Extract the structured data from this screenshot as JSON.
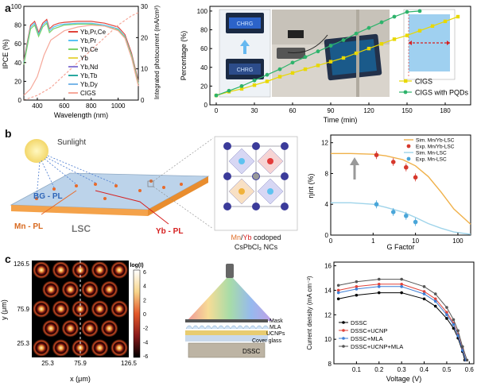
{
  "panel_labels": {
    "a": "a",
    "b": "b",
    "c": "c"
  },
  "colors": {
    "YbPrCe": "#e0433a",
    "YbPr": "#58c2f5",
    "YbCe": "#7bd36b",
    "Yb": "#e8d64a",
    "YbNd": "#8a7ad6",
    "YbTb": "#2aa8a0",
    "YbDy": "#79b7e8",
    "CIGS": "#f6a89a",
    "cigs_line": "#e8d800",
    "pqd_line": "#2db36b",
    "sim_mnyb": "#f0b14a",
    "exp_mnyb": "#d6382c",
    "sim_mn": "#9fd4ea",
    "exp_mn": "#4aa6d9",
    "dssc": "#000000",
    "dssc_ucnp": "#e0433a",
    "dssc_mla": "#3f7fd6",
    "dssc_ucnp_mla": "#555555"
  },
  "chart_data": [
    {
      "id": "ipce",
      "type": "line",
      "xlabel": "Wavelength (nm)",
      "ylabel": "IPCE (%)",
      "y2label": "Integrated photocurrent (mA/cm²)",
      "xlim": [
        300,
        1150
      ],
      "ylim": [
        0,
        100
      ],
      "y2lim": [
        0,
        30
      ],
      "xticks": [
        "400",
        "600",
        "800",
        "1000"
      ],
      "yticks": [
        "0",
        "20",
        "40",
        "60",
        "80",
        "100"
      ],
      "y2ticks": [
        "0",
        "10",
        "20",
        "30"
      ],
      "legend": [
        "Yb,Pr,Ce",
        "Yb,Pr",
        "Yb,Ce",
        "Yb",
        "Yb,Nd",
        "Yb,Tb",
        "Yb,Dy",
        "CIGS"
      ],
      "series": [
        {
          "name": "Yb,Pr,Ce",
          "x": [
            300,
            350,
            380,
            410,
            440,
            470,
            490,
            520,
            560,
            600,
            700,
            800,
            900,
            1000,
            1050,
            1100,
            1150
          ],
          "y": [
            42,
            80,
            84,
            72,
            82,
            86,
            76,
            80,
            82,
            83,
            84,
            84,
            82,
            78,
            70,
            50,
            20
          ]
        },
        {
          "name": "Yb,Pr",
          "x": [
            300,
            350,
            380,
            410,
            440,
            470,
            490,
            520,
            560,
            600,
            700,
            800,
            900,
            1000,
            1050,
            1100,
            1150
          ],
          "y": [
            40,
            78,
            82,
            70,
            80,
            84,
            74,
            78,
            80,
            81,
            82,
            82,
            80,
            76,
            68,
            48,
            18
          ]
        },
        {
          "name": "Yb,Ce",
          "x": [
            300,
            350,
            380,
            410,
            440,
            470,
            490,
            520,
            560,
            600,
            700,
            800,
            900,
            1000,
            1050,
            1100,
            1150
          ],
          "y": [
            38,
            76,
            80,
            68,
            78,
            82,
            72,
            76,
            78,
            80,
            81,
            81,
            79,
            75,
            67,
            47,
            17
          ]
        },
        {
          "name": "CIGS",
          "x": [
            300,
            350,
            400,
            450,
            500,
            600,
            700,
            800,
            900,
            1000,
            1050,
            1100,
            1150
          ],
          "y": [
            5,
            12,
            25,
            48,
            64,
            74,
            78,
            80,
            79,
            74,
            66,
            45,
            15
          ]
        }
      ],
      "photocurrent": {
        "x": [
          300,
          400,
          500,
          600,
          700,
          800,
          900,
          1000,
          1100,
          1150
        ],
        "y": [
          0,
          1.5,
          4,
          8,
          12,
          16,
          20,
          24,
          27,
          28
        ]
      }
    },
    {
      "id": "percentage",
      "type": "line",
      "xlabel": "Time (min)",
      "ylabel": "Percentage (%)",
      "xlim": [
        -5,
        200
      ],
      "ylim": [
        0,
        105
      ],
      "xticks": [
        "0",
        "30",
        "60",
        "90",
        "120",
        "150",
        "180"
      ],
      "yticks": [
        "0",
        "20",
        "40",
        "60",
        "80",
        "100"
      ],
      "series": [
        {
          "name": "CIGS",
          "x": [
            0,
            10,
            20,
            30,
            40,
            50,
            60,
            70,
            80,
            90,
            100,
            110,
            120,
            130,
            140,
            150,
            160,
            170,
            180,
            190
          ],
          "y": [
            10,
            14,
            17,
            21,
            25,
            30,
            34,
            38,
            42,
            46,
            50,
            55,
            60,
            65,
            70,
            74,
            79,
            84,
            89,
            94
          ]
        },
        {
          "name": "CIGS with PQDs",
          "x": [
            0,
            10,
            20,
            30,
            40,
            50,
            60,
            70,
            80,
            90,
            100,
            110,
            120,
            130,
            140,
            150,
            160
          ],
          "y": [
            10,
            15,
            20,
            26,
            32,
            38,
            45,
            51,
            57,
            63,
            69,
            76,
            82,
            88,
            94,
            99,
            100
          ]
        }
      ],
      "screen_text": [
        "CHRG",
        "CHRG"
      ]
    },
    {
      "id": "ntot",
      "type": "scatter",
      "xlabel": "G Factor",
      "ylabel": "ηint (%)",
      "xlog": true,
      "xlim": [
        0.1,
        200
      ],
      "ylim": [
        0,
        13
      ],
      "xticks": [
        "0",
        "1",
        "10",
        "100"
      ],
      "yticks": [
        "0",
        "4",
        "8",
        "12"
      ],
      "legend": [
        "Sim. Mn/Yb-LSC",
        "Exp. Mn/Yb-LSC",
        "Sim. Mn-LSC",
        "Exp. Mn-LSC"
      ],
      "series": [
        {
          "name": "Sim. Mn/Yb-LSC",
          "x": [
            0.1,
            0.3,
            1,
            2,
            5,
            10,
            20,
            40,
            80,
            200
          ],
          "y": [
            10.6,
            10.6,
            10.5,
            10.3,
            9.8,
            9.0,
            7.6,
            5.6,
            3.4,
            1.4
          ]
        },
        {
          "name": "Exp. Mn/Yb-LSC",
          "x": [
            1.2,
            3,
            6,
            10
          ],
          "y": [
            10.4,
            9.5,
            8.8,
            7.5
          ]
        },
        {
          "name": "Sim. Mn-LSC",
          "x": [
            0.1,
            0.3,
            1,
            2,
            5,
            10,
            20,
            40,
            80,
            200
          ],
          "y": [
            4.2,
            4.2,
            4.0,
            3.6,
            3.0,
            2.3,
            1.5,
            0.9,
            0.4,
            0.1
          ]
        },
        {
          "name": "Exp. Mn-LSC",
          "x": [
            1.2,
            3,
            6,
            10
          ],
          "y": [
            4.0,
            3.0,
            2.5,
            1.7
          ]
        }
      ]
    },
    {
      "id": "intensity_map",
      "type": "heatmap",
      "xlabel": "x (μm)",
      "ylabel": "y (μm)",
      "xticks": [
        "25.3",
        "75.9",
        "126.5"
      ],
      "yticks": [
        "126.5",
        "75.9",
        "25.3"
      ],
      "colorbar_label": "log(I)",
      "colorbar_ticks": [
        "6",
        "4",
        "2",
        "0",
        "-2",
        "-4",
        "-6"
      ],
      "colorbar_range": [
        -6,
        6
      ]
    },
    {
      "id": "jv",
      "type": "line",
      "xlabel": "Voltage (V)",
      "ylabel": "Current density (mA cm⁻²)",
      "xlim": [
        0,
        0.62
      ],
      "ylim": [
        8,
        16.3
      ],
      "xticks": [
        "0.1",
        "0.2",
        "0.3",
        "0.4",
        "0.5",
        "0.6"
      ],
      "yticks": [
        "8",
        "10",
        "12",
        "14",
        "16"
      ],
      "legend": [
        "DSSC",
        "DSSC+UCNP",
        "DSSC+MLA",
        "DSSC+UCNP+MLA"
      ],
      "series": [
        {
          "name": "DSSC",
          "x": [
            0.02,
            0.1,
            0.2,
            0.3,
            0.4,
            0.45,
            0.5,
            0.53,
            0.55,
            0.57,
            0.58
          ],
          "y": [
            13.3,
            13.6,
            13.8,
            13.8,
            13.3,
            12.7,
            11.7,
            10.9,
            10.1,
            9.0,
            8.3
          ]
        },
        {
          "name": "DSSC+UCNP",
          "x": [
            0.02,
            0.1,
            0.2,
            0.3,
            0.4,
            0.45,
            0.5,
            0.53,
            0.55,
            0.57,
            0.585
          ],
          "y": [
            14.0,
            14.3,
            14.5,
            14.5,
            13.9,
            13.3,
            12.2,
            11.3,
            10.4,
            9.2,
            8.3
          ]
        },
        {
          "name": "DSSC+MLA",
          "x": [
            0.02,
            0.1,
            0.2,
            0.3,
            0.4,
            0.45,
            0.5,
            0.53,
            0.55,
            0.57,
            0.585
          ],
          "y": [
            13.8,
            14.1,
            14.3,
            14.3,
            13.7,
            13.1,
            12.0,
            11.2,
            10.3,
            9.1,
            8.3
          ]
        },
        {
          "name": "DSSC+UCNP+MLA",
          "x": [
            0.02,
            0.1,
            0.2,
            0.3,
            0.4,
            0.45,
            0.5,
            0.53,
            0.55,
            0.57,
            0.59
          ],
          "y": [
            14.4,
            14.7,
            14.9,
            14.9,
            14.3,
            13.7,
            12.6,
            11.6,
            10.7,
            9.4,
            8.3
          ]
        }
      ]
    }
  ],
  "diagrams": {
    "lsc": {
      "sunlight": "Sunlight",
      "bg_pl": "BG - PL",
      "mn_pl": "Mn - PL",
      "yb_pl": "Yb - PL",
      "lsc": "LSC",
      "crystal_caption_mn": "Mn",
      "crystal_caption_sep": "/",
      "crystal_caption_yb": "Yb",
      "crystal_caption_rest": " codoped",
      "crystal_caption_2": "CsPbCl₃ NCs"
    },
    "dssc": {
      "mask": "Mask",
      "mla": "MLA",
      "ucnps": "UCNPs",
      "cover_glass": "Cover glass",
      "dssc": "DSSC"
    }
  }
}
